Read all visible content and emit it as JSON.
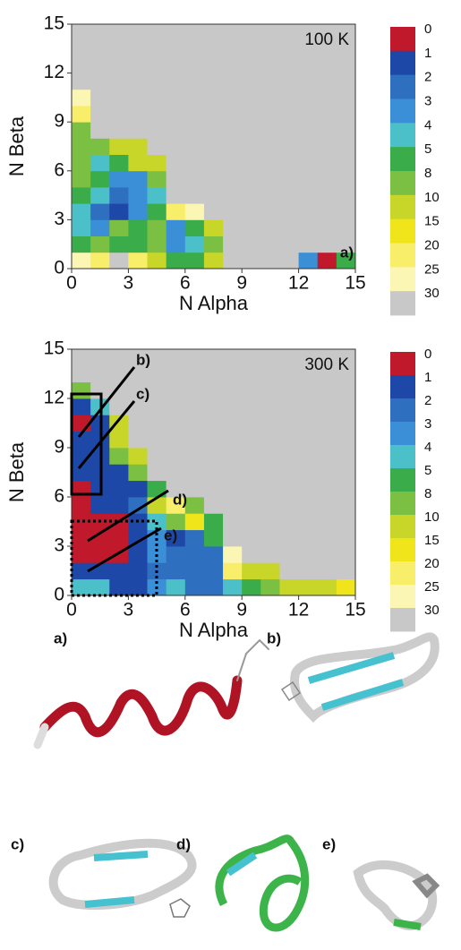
{
  "chart_data": [
    {
      "type": "heatmap",
      "xlabel": "N Alpha",
      "ylabel": "N Beta",
      "xlim": [
        0,
        15
      ],
      "ylim": [
        0,
        15
      ],
      "xticks": [
        0,
        3,
        6,
        9,
        12,
        15
      ],
      "yticks": [
        0,
        3,
        6,
        9,
        12,
        15
      ],
      "annotations": [
        "100 K",
        "a)"
      ],
      "colorbar": {
        "levels": [
          0,
          1,
          2,
          3,
          4,
          5,
          8,
          10,
          15,
          20,
          25,
          30
        ],
        "colors": [
          "#c0192b",
          "#1e48a8",
          "#2e6fbf",
          "#3a8fd6",
          "#4cc0c8",
          "#3aad4a",
          "#7cc043",
          "#c8d62a",
          "#f0e51a",
          "#f8ee6a",
          "#fcf6b4",
          "#c8c8c8"
        ]
      },
      "z": [
        [
          25,
          20,
          30,
          20,
          10,
          5,
          5,
          10,
          30,
          30,
          30,
          30,
          3,
          0,
          5
        ],
        [
          5,
          8,
          5,
          5,
          8,
          3,
          4,
          8,
          30,
          30,
          30,
          30,
          30,
          30,
          30
        ],
        [
          4,
          3,
          8,
          5,
          8,
          3,
          5,
          10,
          30,
          30,
          30,
          30,
          30,
          30,
          30
        ],
        [
          4,
          2,
          1,
          3,
          5,
          20,
          25,
          30,
          30,
          30,
          30,
          30,
          30,
          30,
          30
        ],
        [
          5,
          4,
          2,
          3,
          4,
          30,
          30,
          30,
          30,
          30,
          30,
          30,
          30,
          30,
          30
        ],
        [
          8,
          5,
          3,
          3,
          8,
          30,
          30,
          30,
          30,
          30,
          30,
          30,
          30,
          30,
          30
        ],
        [
          8,
          4,
          5,
          10,
          10,
          30,
          30,
          30,
          30,
          30,
          30,
          30,
          30,
          30,
          30
        ],
        [
          8,
          8,
          10,
          10,
          30,
          30,
          30,
          30,
          30,
          30,
          30,
          30,
          30,
          30,
          30
        ],
        [
          8,
          30,
          30,
          30,
          30,
          30,
          30,
          30,
          30,
          30,
          30,
          30,
          30,
          30,
          30
        ],
        [
          20,
          30,
          30,
          30,
          30,
          30,
          30,
          30,
          30,
          30,
          30,
          30,
          30,
          30,
          30
        ],
        [
          25,
          30,
          30,
          30,
          30,
          30,
          30,
          30,
          30,
          30,
          30,
          30,
          30,
          30,
          30
        ],
        [
          30,
          30,
          30,
          30,
          30,
          30,
          30,
          30,
          30,
          30,
          30,
          30,
          30,
          30,
          30
        ],
        [
          30,
          30,
          30,
          30,
          30,
          30,
          30,
          30,
          30,
          30,
          30,
          30,
          30,
          30,
          30
        ],
        [
          30,
          30,
          30,
          30,
          30,
          30,
          30,
          30,
          30,
          30,
          30,
          30,
          30,
          30,
          30
        ],
        [
          30,
          30,
          30,
          30,
          30,
          30,
          30,
          30,
          30,
          30,
          30,
          30,
          30,
          30,
          30
        ]
      ]
    },
    {
      "type": "heatmap",
      "xlabel": "N Alpha",
      "ylabel": "N Beta",
      "xlim": [
        0,
        15
      ],
      "ylim": [
        0,
        15
      ],
      "xticks": [
        0,
        3,
        6,
        9,
        12,
        15
      ],
      "yticks": [
        0,
        3,
        6,
        9,
        12,
        15
      ],
      "annotations": [
        "300 K",
        "b)",
        "c)",
        "d)",
        "e)"
      ],
      "colorbar": {
        "levels": [
          0,
          1,
          2,
          3,
          4,
          5,
          8,
          10,
          15,
          20,
          25,
          30
        ],
        "colors": [
          "#c0192b",
          "#1e48a8",
          "#2e6fbf",
          "#3a8fd6",
          "#4cc0c8",
          "#3aad4a",
          "#7cc043",
          "#c8d62a",
          "#f0e51a",
          "#f8ee6a",
          "#fcf6b4",
          "#c8c8c8"
        ]
      },
      "z": [
        [
          4,
          4,
          1,
          1,
          3,
          4,
          2,
          2,
          4,
          5,
          8,
          10,
          10,
          10,
          15
        ],
        [
          1,
          1,
          1,
          1,
          2,
          2,
          2,
          2,
          20,
          10,
          10,
          30,
          30,
          30,
          30
        ],
        [
          0,
          0,
          0,
          1,
          3,
          2,
          2,
          2,
          25,
          30,
          30,
          30,
          30,
          30,
          30
        ],
        [
          0,
          0,
          0,
          1,
          3,
          1,
          2,
          5,
          30,
          30,
          30,
          30,
          30,
          30,
          30
        ],
        [
          0,
          0,
          0,
          1,
          4,
          8,
          15,
          5,
          30,
          30,
          30,
          30,
          30,
          30,
          30
        ],
        [
          0,
          1,
          1,
          2,
          10,
          20,
          8,
          30,
          30,
          30,
          30,
          30,
          30,
          30,
          30
        ],
        [
          0,
          1,
          1,
          1,
          5,
          30,
          30,
          30,
          30,
          30,
          30,
          30,
          30,
          30,
          30
        ],
        [
          1,
          1,
          1,
          8,
          30,
          30,
          30,
          30,
          30,
          30,
          30,
          30,
          30,
          30,
          30
        ],
        [
          1,
          1,
          8,
          10,
          30,
          30,
          30,
          30,
          30,
          30,
          30,
          30,
          30,
          30,
          30
        ],
        [
          1,
          1,
          10,
          30,
          30,
          30,
          30,
          30,
          30,
          30,
          30,
          30,
          30,
          30,
          30
        ],
        [
          0,
          1,
          10,
          30,
          30,
          30,
          30,
          30,
          30,
          30,
          30,
          30,
          30,
          30,
          30
        ],
        [
          1,
          4,
          30,
          30,
          30,
          30,
          30,
          30,
          30,
          30,
          30,
          30,
          30,
          30,
          30
        ],
        [
          8,
          30,
          30,
          30,
          30,
          30,
          30,
          30,
          30,
          30,
          30,
          30,
          30,
          30,
          30
        ],
        [
          30,
          30,
          30,
          30,
          30,
          30,
          30,
          30,
          30,
          30,
          30,
          30,
          30,
          30,
          30
        ],
        [
          30,
          30,
          30,
          30,
          30,
          30,
          30,
          30,
          30,
          30,
          30,
          30,
          30,
          30,
          30
        ]
      ]
    }
  ],
  "structures": [
    "a)",
    "b)",
    "c)",
    "d)",
    "e)"
  ]
}
